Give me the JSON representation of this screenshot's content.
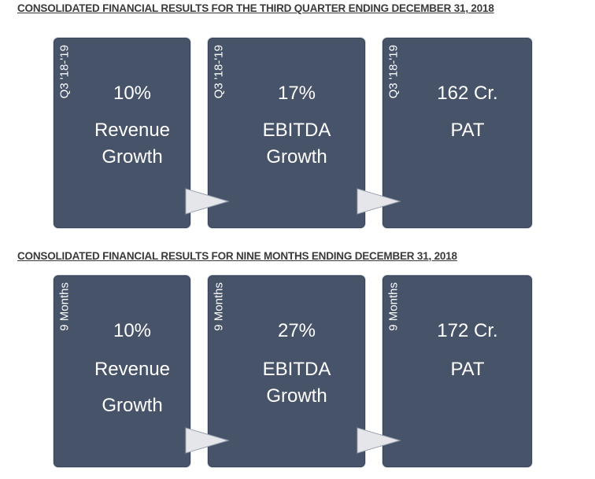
{
  "section_quarter": {
    "heading": "CONSOLIDATED FINANCIAL RESULTS FOR THE THIRD QUARTER ENDING DECEMBER 31, 2018",
    "cards": [
      {
        "period": "Q3 '18-'19",
        "value": "10%",
        "label_line1": "Revenue",
        "label_line2": "Growth"
      },
      {
        "period": "Q3 '18-'19",
        "value": "17%",
        "label_line1": "EBITDA",
        "label_line2": "Growth"
      },
      {
        "period": "Q3 '18-'19",
        "value": "162 Cr.",
        "label_line1": "PAT",
        "label_line2": ""
      }
    ]
  },
  "section_nine_months": {
    "heading": "CONSOLIDATED FINANCIAL RESULTS FOR NINE MONTHS ENDING DECEMBER 31, 2018",
    "cards": [
      {
        "period": "9 Months",
        "value": "10%",
        "label_line1": "Revenue",
        "label_line2": "Growth"
      },
      {
        "period": "9 Months",
        "value": "27%",
        "label_line1": "EBITDA",
        "label_line2": "Growth"
      },
      {
        "period": "9 Months",
        "value": "172 Cr.",
        "label_line1": "PAT",
        "label_line2": ""
      }
    ]
  },
  "colors": {
    "card_bg": "#475369",
    "text": "#ffffff",
    "arrow": "#e4e6ea",
    "heading": "#3a3a3a"
  }
}
